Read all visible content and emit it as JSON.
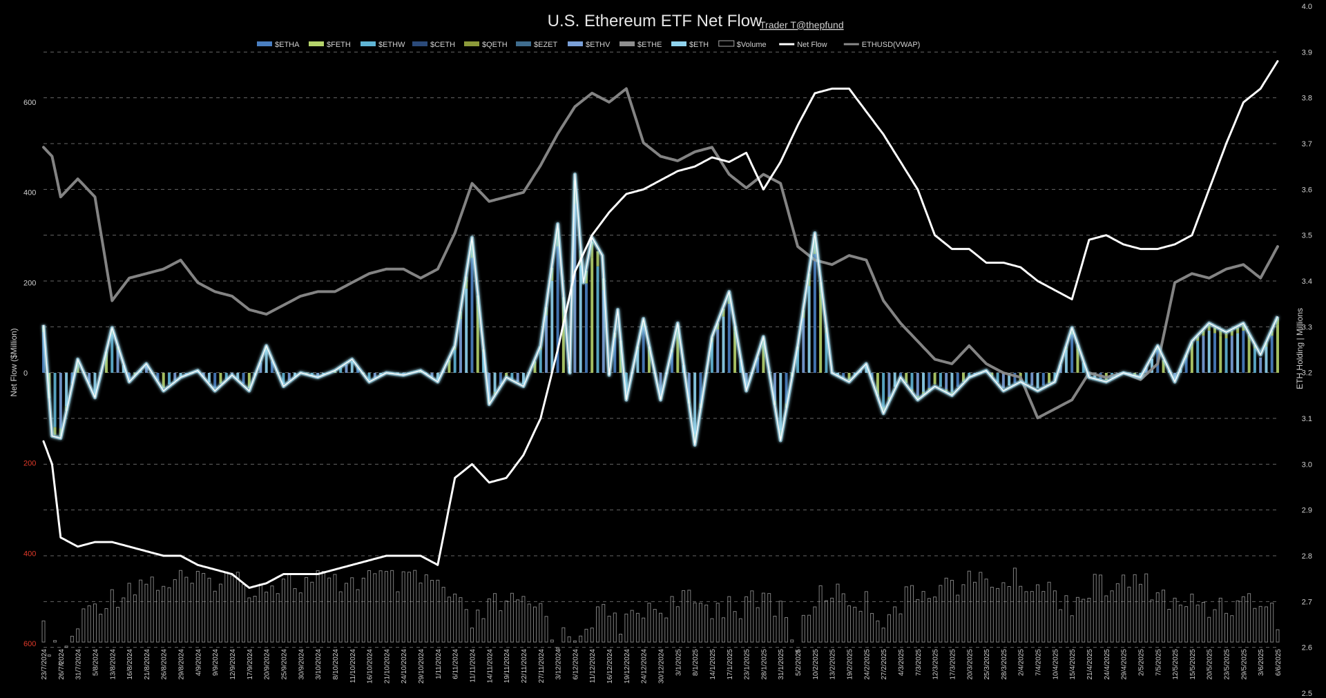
{
  "chart_data": {
    "type": "bar",
    "title": "U.S. Ethereum ETF Net Flow",
    "credit": "Trader T@thepfund",
    "ylabel_left": "Net Flow ($Million)",
    "ylabel_right": "ETH Holding | Millions",
    "ylim_left": [
      -600,
      600
    ],
    "ylim_right": [
      2.5,
      4.0
    ],
    "left_ticks": [
      {
        "value": 600,
        "label": "600",
        "red": false
      },
      {
        "value": 400,
        "label": "400",
        "red": false
      },
      {
        "value": 200,
        "label": "200",
        "red": false
      },
      {
        "value": 0,
        "label": "0",
        "red": false
      },
      {
        "value": -200,
        "label": "200",
        "red": true
      },
      {
        "value": -400,
        "label": "400",
        "red": true
      },
      {
        "value": -600,
        "label": "600",
        "red": true
      }
    ],
    "right_ticks": [
      "2.5",
      "2.6",
      "2.7",
      "2.8",
      "2.9",
      "3.0",
      "3.1",
      "3.2",
      "3.3",
      "3.4",
      "3.5",
      "3.6",
      "3.7",
      "3.8",
      "3.9",
      "4.0"
    ],
    "grid": true,
    "legend_position": "top",
    "colors": {
      "etha": "#4a7fc1",
      "feth": "#b5d36b",
      "ethw": "#5fb4d4",
      "ceth": "#2b4a7a",
      "qeth": "#8c9a3a",
      "ezet": "#3f6d8e",
      "ethv": "#7aa0d8",
      "ethe": "#8e8e8e",
      "eth": "#8fd3ee",
      "volume": "#a9a9a9",
      "netflow_line": "#ffffff",
      "vwap_line": "#8a8a8a",
      "flow_glow": "#a6e1f5"
    },
    "legend": [
      {
        "key": "etha",
        "label": "$ETHA",
        "type": "bar"
      },
      {
        "key": "feth",
        "label": "$FETH",
        "type": "bar"
      },
      {
        "key": "ethw",
        "label": "$ETHW",
        "type": "bar"
      },
      {
        "key": "ceth",
        "label": "$CETH",
        "type": "bar"
      },
      {
        "key": "qeth",
        "label": "$QETH",
        "type": "bar"
      },
      {
        "key": "ezet",
        "label": "$EZET",
        "type": "bar"
      },
      {
        "key": "ethv",
        "label": "$ETHV",
        "type": "bar"
      },
      {
        "key": "ethe",
        "label": "$ETHE",
        "type": "bar"
      },
      {
        "key": "eth",
        "label": "$ETH",
        "type": "bar"
      },
      {
        "key": "volume",
        "label": "$Volume",
        "type": "outline"
      },
      {
        "key": "netflow_line",
        "label": "Net Flow",
        "type": "line"
      },
      {
        "key": "vwap_line",
        "label": "ETHUSD(VWAP)",
        "type": "line"
      }
    ],
    "x_labels": [
      "23/7/2024",
      "26/7/2024",
      "31/7/2024",
      "5/8/2024",
      "13/8/2024",
      "16/8/2024",
      "21/8/2024",
      "26/8/2024",
      "29/8/2024",
      "4/9/2024",
      "9/9/2024",
      "12/9/2024",
      "17/9/2024",
      "20/9/2024",
      "25/9/2024",
      "30/9/2024",
      "3/10/2024",
      "8/10/2024",
      "11/10/2024",
      "16/10/2024",
      "21/10/2024",
      "24/10/2024",
      "29/10/2024",
      "1/11/2024",
      "6/11/2024",
      "11/11/2024",
      "14/11/2024",
      "19/11/2024",
      "22/11/2024",
      "27/11/2024",
      "3/12/2024",
      "6/12/2024",
      "11/12/2024",
      "16/12/2024",
      "19/12/2024",
      "24/12/2024",
      "30/12/2024",
      "3/1/2025",
      "8/1/2025",
      "14/1/2025",
      "17/1/2025",
      "23/1/2025",
      "28/1/2025",
      "31/1/2025",
      "5/2/2025",
      "10/2/2025",
      "13/2/2025",
      "19/2/2025",
      "24/2/2025",
      "27/2/2025",
      "4/3/2025",
      "7/3/2025",
      "12/3/2025",
      "17/3/2025",
      "20/3/2025",
      "25/3/2025",
      "28/3/2025",
      "2/4/2025",
      "7/4/2025",
      "10/4/2025",
      "15/4/2025",
      "21/4/2025",
      "24/4/2025",
      "29/4/2025",
      "2/5/2025",
      "7/5/2025",
      "12/5/2025",
      "15/5/2025",
      "20/5/2025",
      "23/5/2025",
      "29/5/2025",
      "3/6/2025",
      "6/6/2025"
    ],
    "flow_anchors": [
      [
        0,
        106
      ],
      [
        0.5,
        -140
      ],
      [
        1,
        -145
      ],
      [
        2,
        30
      ],
      [
        3,
        -55
      ],
      [
        4,
        100
      ],
      [
        5,
        -20
      ],
      [
        6,
        20
      ],
      [
        7,
        -40
      ],
      [
        8,
        -10
      ],
      [
        9,
        5
      ],
      [
        10,
        -40
      ],
      [
        11,
        -5
      ],
      [
        12,
        -40
      ],
      [
        13,
        60
      ],
      [
        14,
        -30
      ],
      [
        15,
        0
      ],
      [
        16,
        -10
      ],
      [
        17,
        5
      ],
      [
        18,
        30
      ],
      [
        19,
        -20
      ],
      [
        20,
        0
      ],
      [
        21,
        -5
      ],
      [
        22,
        5
      ],
      [
        23,
        -20
      ],
      [
        24,
        60
      ],
      [
        25,
        300
      ],
      [
        26,
        -70
      ],
      [
        27,
        -10
      ],
      [
        28,
        -30
      ],
      [
        29,
        60
      ],
      [
        30,
        330
      ],
      [
        30.7,
        0
      ],
      [
        31,
        440
      ],
      [
        31.5,
        200
      ],
      [
        32,
        300
      ],
      [
        32.6,
        260
      ],
      [
        33,
        -5
      ],
      [
        33.5,
        140
      ],
      [
        34,
        -60
      ],
      [
        35,
        120
      ],
      [
        36,
        -60
      ],
      [
        37,
        110
      ],
      [
        38,
        -160
      ],
      [
        39,
        80
      ],
      [
        40,
        180
      ],
      [
        41,
        -40
      ],
      [
        42,
        80
      ],
      [
        43,
        -150
      ],
      [
        44,
        60
      ],
      [
        45,
        310
      ],
      [
        46,
        0
      ],
      [
        47,
        -20
      ],
      [
        48,
        20
      ],
      [
        49,
        -90
      ],
      [
        50,
        -10
      ],
      [
        51,
        -60
      ],
      [
        52,
        -30
      ],
      [
        53,
        -50
      ],
      [
        54,
        -10
      ],
      [
        55,
        5
      ],
      [
        56,
        -40
      ],
      [
        57,
        -20
      ],
      [
        58,
        -40
      ],
      [
        59,
        -20
      ],
      [
        60,
        100
      ],
      [
        61,
        -10
      ],
      [
        62,
        -20
      ],
      [
        63,
        0
      ],
      [
        64,
        -10
      ],
      [
        65,
        60
      ],
      [
        66,
        -20
      ],
      [
        67,
        70
      ],
      [
        68,
        110
      ],
      [
        69,
        90
      ],
      [
        70,
        110
      ],
      [
        71,
        40
      ],
      [
        72,
        125
      ]
    ],
    "netflow_anchors": [
      [
        0,
        3.05
      ],
      [
        0.5,
        3.0
      ],
      [
        1,
        2.84
      ],
      [
        2,
        2.82
      ],
      [
        3,
        2.83
      ],
      [
        4,
        2.83
      ],
      [
        5,
        2.82
      ],
      [
        6,
        2.81
      ],
      [
        7,
        2.8
      ],
      [
        8,
        2.8
      ],
      [
        9,
        2.78
      ],
      [
        10,
        2.77
      ],
      [
        11,
        2.76
      ],
      [
        12,
        2.73
      ],
      [
        13,
        2.74
      ],
      [
        14,
        2.76
      ],
      [
        15,
        2.76
      ],
      [
        16,
        2.76
      ],
      [
        17,
        2.77
      ],
      [
        18,
        2.78
      ],
      [
        19,
        2.79
      ],
      [
        20,
        2.8
      ],
      [
        21,
        2.8
      ],
      [
        22,
        2.8
      ],
      [
        23,
        2.78
      ],
      [
        24,
        2.97
      ],
      [
        25,
        3.0
      ],
      [
        26,
        2.96
      ],
      [
        27,
        2.97
      ],
      [
        28,
        3.02
      ],
      [
        29,
        3.1
      ],
      [
        30,
        3.25
      ],
      [
        31,
        3.42
      ],
      [
        32,
        3.5
      ],
      [
        33,
        3.55
      ],
      [
        34,
        3.59
      ],
      [
        35,
        3.6
      ],
      [
        36,
        3.62
      ],
      [
        37,
        3.64
      ],
      [
        38,
        3.65
      ],
      [
        39,
        3.67
      ],
      [
        40,
        3.66
      ],
      [
        41,
        3.68
      ],
      [
        42,
        3.6
      ],
      [
        43,
        3.66
      ],
      [
        44,
        3.74
      ],
      [
        45,
        3.81
      ],
      [
        46,
        3.82
      ],
      [
        47,
        3.82
      ],
      [
        48,
        3.77
      ],
      [
        49,
        3.72
      ],
      [
        50,
        3.66
      ],
      [
        51,
        3.6
      ],
      [
        52,
        3.5
      ],
      [
        53,
        3.47
      ],
      [
        54,
        3.47
      ],
      [
        55,
        3.44
      ],
      [
        56,
        3.44
      ],
      [
        57,
        3.43
      ],
      [
        58,
        3.4
      ],
      [
        59,
        3.38
      ],
      [
        60,
        3.36
      ],
      [
        61,
        3.49
      ],
      [
        62,
        3.5
      ],
      [
        63,
        3.48
      ],
      [
        64,
        3.47
      ],
      [
        65,
        3.47
      ],
      [
        66,
        3.48
      ],
      [
        67,
        3.5
      ],
      [
        68,
        3.6
      ],
      [
        69,
        3.7
      ],
      [
        70,
        3.79
      ],
      [
        71,
        3.82
      ],
      [
        72,
        3.88
      ]
    ],
    "vwap_anchors": [
      [
        0,
        500
      ],
      [
        0.5,
        480
      ],
      [
        1,
        390
      ],
      [
        2,
        430
      ],
      [
        3,
        390
      ],
      [
        4,
        160
      ],
      [
        5,
        210
      ],
      [
        6,
        220
      ],
      [
        7,
        230
      ],
      [
        8,
        250
      ],
      [
        9,
        200
      ],
      [
        10,
        180
      ],
      [
        11,
        170
      ],
      [
        12,
        140
      ],
      [
        13,
        130
      ],
      [
        14,
        150
      ],
      [
        15,
        170
      ],
      [
        16,
        180
      ],
      [
        17,
        180
      ],
      [
        18,
        200
      ],
      [
        19,
        220
      ],
      [
        20,
        230
      ],
      [
        21,
        230
      ],
      [
        22,
        210
      ],
      [
        23,
        230
      ],
      [
        24,
        310
      ],
      [
        25,
        420
      ],
      [
        26,
        380
      ],
      [
        27,
        390
      ],
      [
        28,
        400
      ],
      [
        29,
        460
      ],
      [
        30,
        530
      ],
      [
        31,
        590
      ],
      [
        32,
        620
      ],
      [
        33,
        600
      ],
      [
        34,
        630
      ],
      [
        35,
        510
      ],
      [
        36,
        480
      ],
      [
        37,
        470
      ],
      [
        38,
        490
      ],
      [
        39,
        500
      ],
      [
        40,
        440
      ],
      [
        41,
        410
      ],
      [
        42,
        440
      ],
      [
        43,
        420
      ],
      [
        44,
        280
      ],
      [
        45,
        250
      ],
      [
        46,
        240
      ],
      [
        47,
        260
      ],
      [
        48,
        250
      ],
      [
        49,
        160
      ],
      [
        50,
        110
      ],
      [
        51,
        70
      ],
      [
        52,
        30
      ],
      [
        53,
        20
      ],
      [
        54,
        60
      ],
      [
        55,
        20
      ],
      [
        56,
        0
      ],
      [
        57,
        -10
      ],
      [
        58,
        -100
      ],
      [
        59,
        -80
      ],
      [
        60,
        -60
      ],
      [
        61,
        0
      ],
      [
        62,
        -10
      ],
      [
        63,
        0
      ],
      [
        64,
        -15
      ],
      [
        65,
        20
      ],
      [
        66,
        200
      ],
      [
        67,
        220
      ],
      [
        68,
        210
      ],
      [
        69,
        230
      ],
      [
        70,
        240
      ],
      [
        71,
        210
      ],
      [
        72,
        280
      ]
    ],
    "volume_anchors": [
      [
        0,
        580
      ],
      [
        1,
        640
      ],
      [
        2,
        560
      ],
      [
        3,
        510
      ],
      [
        4,
        500
      ],
      [
        5,
        470
      ],
      [
        6,
        460
      ],
      [
        7,
        470
      ],
      [
        8,
        460
      ],
      [
        9,
        470
      ],
      [
        10,
        455
      ],
      [
        11,
        455
      ],
      [
        12,
        470
      ],
      [
        13,
        470
      ],
      [
        14,
        460
      ],
      [
        15,
        470
      ],
      [
        16,
        460
      ],
      [
        17,
        470
      ],
      [
        18,
        460
      ],
      [
        19,
        455
      ],
      [
        20,
        460
      ],
      [
        21,
        470
      ],
      [
        22,
        460
      ],
      [
        23,
        470
      ],
      [
        24,
        510
      ],
      [
        25,
        560
      ],
      [
        26,
        520
      ],
      [
        27,
        510
      ],
      [
        28,
        520
      ],
      [
        29,
        520
      ],
      [
        30,
        590
      ],
      [
        31,
        580
      ],
      [
        32,
        540
      ],
      [
        33,
        540
      ],
      [
        34,
        560
      ],
      [
        35,
        520
      ],
      [
        36,
        520
      ],
      [
        37,
        510
      ],
      [
        38,
        510
      ],
      [
        39,
        520
      ],
      [
        40,
        510
      ],
      [
        41,
        520
      ],
      [
        42,
        500
      ],
      [
        43,
        520
      ],
      [
        44,
        600
      ],
      [
        45,
        500
      ],
      [
        46,
        480
      ],
      [
        47,
        500
      ],
      [
        48,
        510
      ],
      [
        49,
        540
      ],
      [
        50,
        510
      ],
      [
        51,
        490
      ],
      [
        52,
        470
      ],
      [
        53,
        470
      ],
      [
        54,
        465
      ],
      [
        55,
        460
      ],
      [
        56,
        465
      ],
      [
        57,
        460
      ],
      [
        58,
        470
      ],
      [
        59,
        490
      ],
      [
        60,
        510
      ],
      [
        61,
        480
      ],
      [
        62,
        470
      ],
      [
        63,
        470
      ],
      [
        64,
        465
      ],
      [
        65,
        480
      ],
      [
        66,
        520
      ],
      [
        67,
        510
      ],
      [
        68,
        520
      ],
      [
        69,
        510
      ],
      [
        70,
        510
      ],
      [
        71,
        500
      ],
      [
        72,
        540
      ]
    ]
  }
}
